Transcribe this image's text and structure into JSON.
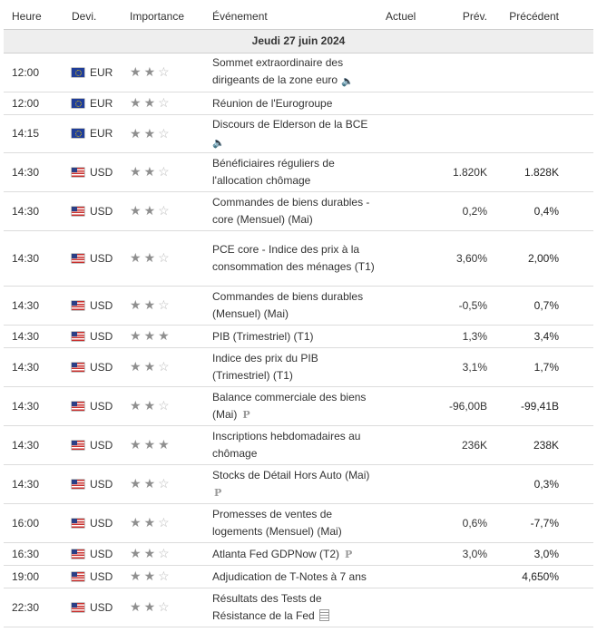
{
  "headers": {
    "time": "Heure",
    "currency": "Devi.",
    "importance": "Importance",
    "event": "Événement",
    "actual": "Actuel",
    "forecast": "Prév.",
    "previous": "Précédent"
  },
  "day_label": "Jeudi 27 juin 2024",
  "icons": {
    "speaker": "speaker-icon",
    "preliminary": "P",
    "document": "document-icon"
  },
  "rows": [
    {
      "time": "12:00",
      "currency": "EUR",
      "flag": "eu",
      "stars": 2,
      "event": "Sommet extraordinaire des dirigeants de la zone euro",
      "icon": "speaker",
      "actual": "",
      "forecast": "",
      "previous": ""
    },
    {
      "time": "12:00",
      "currency": "EUR",
      "flag": "eu",
      "stars": 2,
      "event": "Réunion de l'Eurogroupe",
      "icon": "",
      "actual": "",
      "forecast": "",
      "previous": ""
    },
    {
      "time": "14:15",
      "currency": "EUR",
      "flag": "eu",
      "stars": 2,
      "event": "Discours de Elderson de la BCE",
      "icon": "speaker",
      "iconBlock": true,
      "actual": "",
      "forecast": "",
      "previous": ""
    },
    {
      "time": "14:30",
      "currency": "USD",
      "flag": "us",
      "stars": 2,
      "event": "Bénéficiaires réguliers de l'allocation chômage",
      "icon": "",
      "actual": "",
      "forecast": "1.820K",
      "previous": "1.828K"
    },
    {
      "time": "14:30",
      "currency": "USD",
      "flag": "us",
      "stars": 2,
      "event": "Commandes de biens durables - core (Mensuel) (Mai)",
      "icon": "",
      "actual": "",
      "forecast": "0,2%",
      "previous": "0,4%"
    },
    {
      "time": "14:30",
      "currency": "USD",
      "flag": "us",
      "stars": 2,
      "event": "PCE core - Indice des prix à la consommation des ménages (T1)",
      "icon": "",
      "actual": "",
      "forecast": "3,60%",
      "previous": "2,00%"
    },
    {
      "time": "14:30",
      "currency": "USD",
      "flag": "us",
      "stars": 2,
      "event": "Commandes de biens durables (Mensuel) (Mai)",
      "icon": "",
      "actual": "",
      "forecast": "-0,5%",
      "previous": "0,7%"
    },
    {
      "time": "14:30",
      "currency": "USD",
      "flag": "us",
      "stars": 3,
      "event": "PIB (Trimestriel) (T1)",
      "icon": "",
      "actual": "",
      "forecast": "1,3%",
      "previous": "3,4%"
    },
    {
      "time": "14:30",
      "currency": "USD",
      "flag": "us",
      "stars": 2,
      "event": "Indice des prix du PIB (Trimestriel) (T1)",
      "icon": "",
      "actual": "",
      "forecast": "3,1%",
      "previous": "1,7%"
    },
    {
      "time": "14:30",
      "currency": "USD",
      "flag": "us",
      "stars": 2,
      "event": "Balance commerciale des biens (Mai)",
      "icon": "preliminary",
      "actual": "",
      "forecast": "-96,00B",
      "previous": "-99,41B"
    },
    {
      "time": "14:30",
      "currency": "USD",
      "flag": "us",
      "stars": 3,
      "event": "Inscriptions hebdomadaires au chômage",
      "icon": "",
      "actual": "",
      "forecast": "236K",
      "previous": "238K"
    },
    {
      "time": "14:30",
      "currency": "USD",
      "flag": "us",
      "stars": 2,
      "event": "Stocks de Détail Hors Auto (Mai)",
      "icon": "preliminary",
      "iconBlock": true,
      "actual": "",
      "forecast": "",
      "previous": "0,3%"
    },
    {
      "time": "16:00",
      "currency": "USD",
      "flag": "us",
      "stars": 2,
      "event": "Promesses de ventes de logements (Mensuel) (Mai)",
      "icon": "",
      "actual": "",
      "forecast": "0,6%",
      "previous": "-7,7%"
    },
    {
      "time": "16:30",
      "currency": "USD",
      "flag": "us",
      "stars": 2,
      "event": "Atlanta Fed GDPNow (T2)",
      "icon": "preliminary",
      "actual": "",
      "forecast": "3,0%",
      "previous": "3,0%"
    },
    {
      "time": "19:00",
      "currency": "USD",
      "flag": "us",
      "stars": 2,
      "event": "Adjudication de T-Notes à 7 ans",
      "icon": "",
      "actual": "",
      "forecast": "",
      "previous": "4,650%"
    },
    {
      "time": "22:30",
      "currency": "USD",
      "flag": "us",
      "stars": 2,
      "event": "Résultats des Tests de Résistance de la Fed",
      "icon": "document",
      "actual": "",
      "forecast": "",
      "previous": ""
    }
  ]
}
